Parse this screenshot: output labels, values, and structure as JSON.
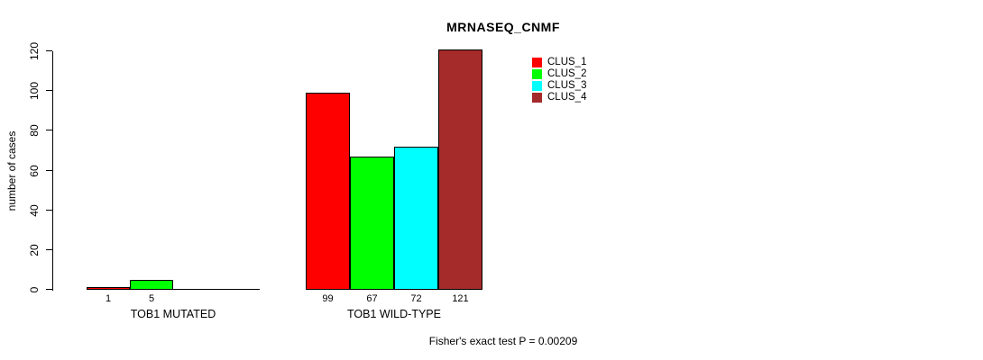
{
  "chart_data": {
    "type": "bar",
    "title": "MRNASEQ_CNMF",
    "ylabel": "number of cases",
    "xlabel": "",
    "ylim": [
      0,
      120
    ],
    "yticks": [
      0,
      20,
      40,
      60,
      80,
      100,
      120
    ],
    "grid": false,
    "legend_position": "top-right",
    "categories": [
      "TOB1 MUTATED",
      "TOB1 WILD-TYPE"
    ],
    "series": [
      {
        "name": "CLUS_1",
        "color": "#ff0000",
        "values": [
          1,
          99
        ]
      },
      {
        "name": "CLUS_2",
        "color": "#00ff00",
        "values": [
          5,
          67
        ]
      },
      {
        "name": "CLUS_3",
        "color": "#00ffff",
        "values": [
          0,
          72
        ]
      },
      {
        "name": "CLUS_4",
        "color": "#a52a2a",
        "values": [
          0,
          121
        ]
      }
    ],
    "bar_value_labels": {
      "TOB1 MUTATED": [
        "1",
        "5"
      ],
      "TOB1 WILD-TYPE": [
        "99",
        "67",
        "72",
        "121"
      ]
    },
    "annotation": "Fisher's exact test P = 0.00209"
  }
}
